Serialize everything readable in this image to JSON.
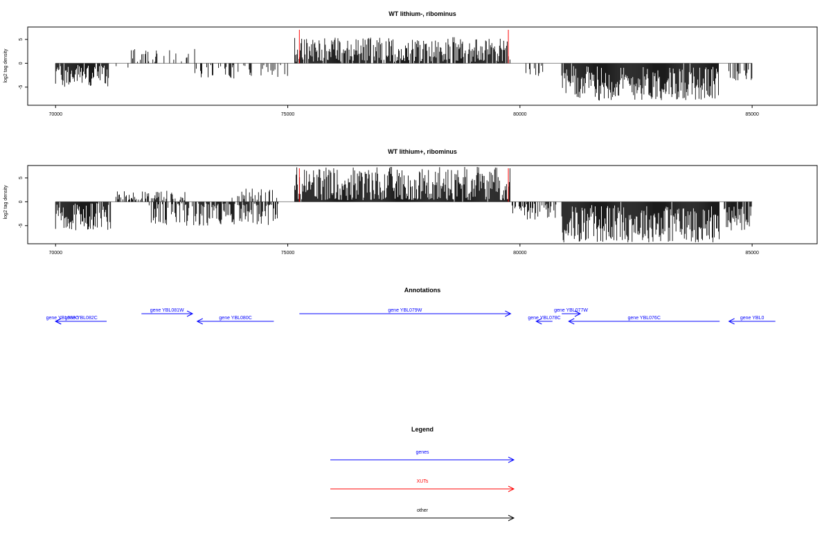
{
  "panels": [
    {
      "title": "WT lithium-, ribominus",
      "ylabel": "log2 tag density"
    },
    {
      "title": "WT lithium+, ribominus",
      "ylabel": "log2 tag density"
    }
  ],
  "annotations_title": "Annotations",
  "legend": {
    "title": "Legend",
    "items": [
      {
        "label": "genes",
        "color": "#0000ff"
      },
      {
        "label": "XUTs",
        "color": "#ff0000"
      },
      {
        "label": "other",
        "color": "#000000"
      }
    ]
  },
  "genes": [
    {
      "label": "gene YBL083C",
      "start": 70300,
      "end": 70000,
      "strand": "-"
    },
    {
      "label": "gene YBL082C",
      "start": 71100,
      "end": 70000,
      "strand": "-"
    },
    {
      "label": "gene YBL081W",
      "start": 71850,
      "end": 72950,
      "strand": "+"
    },
    {
      "label": "gene YBL080C",
      "start": 74700,
      "end": 73050,
      "strand": "-"
    },
    {
      "label": "gene YBL079W",
      "start": 75250,
      "end": 79800,
      "strand": "+"
    },
    {
      "label": "gene YBL078C",
      "start": 80700,
      "end": 80350,
      "strand": "-"
    },
    {
      "label": "gene YBL077W",
      "start": 80900,
      "end": 81300,
      "strand": "+"
    },
    {
      "label": "gene YBL076C",
      "start": 84300,
      "end": 81050,
      "strand": "-"
    },
    {
      "label": "gene YBL0",
      "start": 85500,
      "end": 84500,
      "strand": "-"
    }
  ],
  "chart_data": [
    {
      "type": "bar",
      "title": "WT lithium-, ribominus",
      "xlabel": "",
      "ylabel": "log2 tag density",
      "xlim": [
        69400,
        86400
      ],
      "ylim": [
        -8.8,
        7.6
      ],
      "xticks": [
        70000,
        75000,
        80000,
        85000
      ],
      "yticks": [
        -5,
        0,
        5
      ],
      "markers": [
        75250,
        79750
      ],
      "segments": [
        {
          "start": 70000,
          "end": 71200,
          "sign": -1,
          "mean": -2.6,
          "amp": 2.4,
          "density": 0.85
        },
        {
          "start": 71200,
          "end": 71600,
          "sign": -1,
          "mean": -1.0,
          "amp": 0.8,
          "density": 0.1
        },
        {
          "start": 71600,
          "end": 73000,
          "sign": 1,
          "mean": 1.5,
          "amp": 1.5,
          "density": 0.25
        },
        {
          "start": 73000,
          "end": 75000,
          "sign": -1,
          "mean": -1.6,
          "amp": 1.6,
          "density": 0.25
        },
        {
          "start": 75150,
          "end": 79800,
          "sign": 1,
          "mean": 2.7,
          "amp": 2.8,
          "density": 0.85
        },
        {
          "start": 80100,
          "end": 80500,
          "sign": -1,
          "mean": -1.8,
          "amp": 1.6,
          "density": 0.3
        },
        {
          "start": 80900,
          "end": 84300,
          "sign": -1,
          "mean": -4.2,
          "amp": 3.6,
          "density": 0.98
        },
        {
          "start": 84500,
          "end": 85000,
          "sign": -1,
          "mean": -2.5,
          "amp": 1.8,
          "density": 0.4
        }
      ]
    },
    {
      "type": "bar",
      "title": "WT lithium+, ribominus",
      "xlabel": "",
      "ylabel": "log2 tag density",
      "xlim": [
        69400,
        86400
      ],
      "ylim": [
        -8.8,
        7.6
      ],
      "xticks": [
        70000,
        75000,
        80000,
        85000
      ],
      "yticks": [
        -5,
        0,
        5
      ],
      "markers": [
        75250,
        79750
      ],
      "segments": [
        {
          "start": 70000,
          "end": 71200,
          "sign": -1,
          "mean": -3.0,
          "amp": 3.0,
          "density": 0.95
        },
        {
          "start": 71300,
          "end": 72800,
          "sign": 1,
          "mean": 0.8,
          "amp": 1.5,
          "density": 0.5
        },
        {
          "start": 72000,
          "end": 74800,
          "sign": -1,
          "mean": -2.2,
          "amp": 2.8,
          "density": 0.65
        },
        {
          "start": 73800,
          "end": 74800,
          "sign": 1,
          "mean": 1.2,
          "amp": 1.8,
          "density": 0.2
        },
        {
          "start": 75150,
          "end": 79800,
          "sign": 1,
          "mean": 3.4,
          "amp": 4.0,
          "density": 0.98
        },
        {
          "start": 79800,
          "end": 80800,
          "sign": -1,
          "mean": -1.8,
          "amp": 2.0,
          "density": 0.45
        },
        {
          "start": 80900,
          "end": 84300,
          "sign": -1,
          "mean": -4.6,
          "amp": 4.0,
          "density": 0.99
        },
        {
          "start": 84400,
          "end": 85000,
          "sign": -1,
          "mean": -3.4,
          "amp": 2.6,
          "density": 0.85
        }
      ]
    }
  ]
}
